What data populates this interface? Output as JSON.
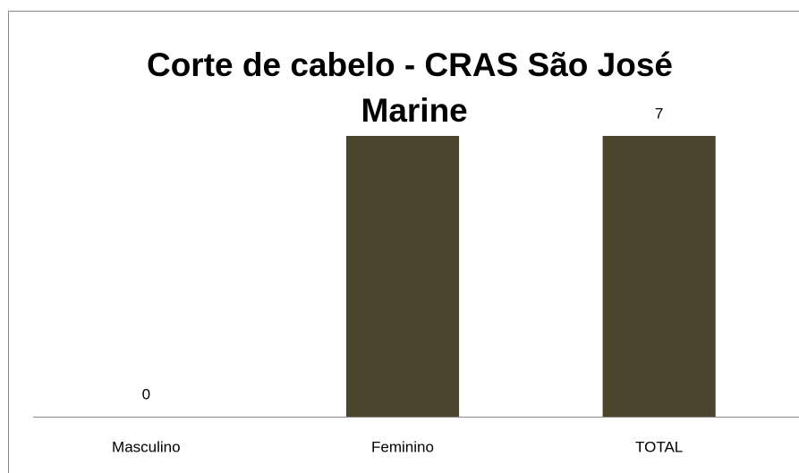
{
  "chart_data": {
    "type": "bar",
    "title": "Corte de cabelo - CRAS São José Marine",
    "categories": [
      "Masculino",
      "Feminino",
      "TOTAL"
    ],
    "values": [
      0,
      7,
      7
    ],
    "color": "#4b452d",
    "data_labels": true
  }
}
